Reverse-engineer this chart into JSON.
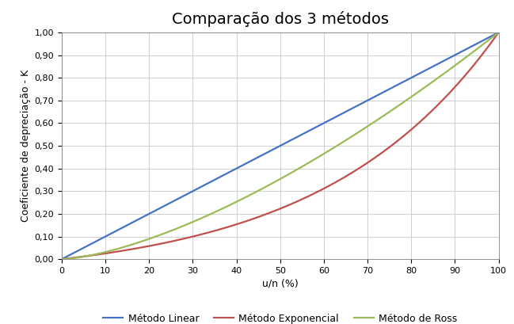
{
  "title": "Comparação dos 3 métodos",
  "xlabel": "u/n (%)",
  "ylabel": "Coeficiente de depreciação - K",
  "x_min": 0,
  "x_max": 100,
  "y_min": 0.0,
  "y_max": 1.0,
  "x_ticks": [
    0,
    10,
    20,
    30,
    40,
    50,
    60,
    70,
    80,
    90,
    100
  ],
  "y_ticks": [
    0.0,
    0.1,
    0.2,
    0.3,
    0.4,
    0.5,
    0.6,
    0.7,
    0.8,
    0.9,
    1.0
  ],
  "y_tick_labels": [
    "0,00",
    "0,10",
    "0,20",
    "0,30",
    "0,40",
    "0,50",
    "0,60",
    "0,70",
    "0,80",
    "0,90",
    "1,00"
  ],
  "linear_color": "#4472C4",
  "exponential_color": "#C0504D",
  "ross_color": "#9BBB59",
  "linear_label": "Método Linear",
  "exponential_label": "Método Exponencial",
  "ross_label": "Método de Ross",
  "line_width": 1.6,
  "background_color": "#FFFFFF",
  "grid_color": "#C8C8C8",
  "title_fontsize": 14,
  "axis_label_fontsize": 9,
  "tick_fontsize": 8,
  "legend_fontsize": 9,
  "b_exp": 3.5,
  "ross_power": 1.6
}
